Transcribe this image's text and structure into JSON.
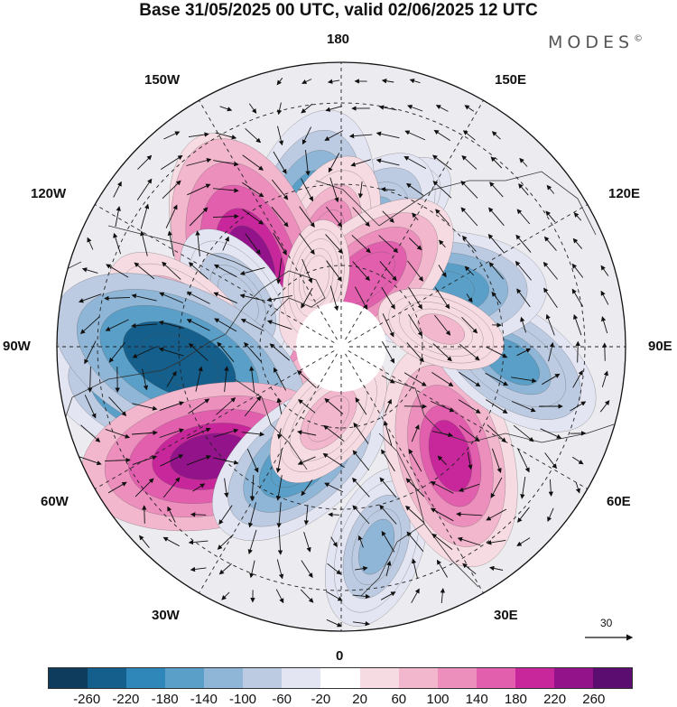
{
  "title": "Base 31/05/2025 00 UTC, valid 02/06/2025 12 UTC",
  "brand": "MODES",
  "brand_mark": "©",
  "longitude_labels": {
    "lon_180": "180",
    "lon_150w": "150W",
    "lon_150e": "150E",
    "lon_120w": "120W",
    "lon_120e": "120E",
    "lon_90w": "90W",
    "lon_90e": "90E",
    "lon_60w": "60W",
    "lon_60e": "60E",
    "lon_30w": "30W",
    "lon_30e": "30E",
    "lon_0": "0"
  },
  "reference_vector": {
    "value": "30"
  },
  "colorbar": {
    "colors": [
      "#0d3c5c",
      "#155f8c",
      "#2f86b8",
      "#5a9fc8",
      "#8fb6d6",
      "#bccbe2",
      "#e4e5f2",
      "#ffffff",
      "#f7dbe2",
      "#f2b7cd",
      "#ec8fbd",
      "#e25fae",
      "#c7279a",
      "#92138a",
      "#5c0e70"
    ],
    "ticks": [
      "-260",
      "-220",
      "-180",
      "-140",
      "-100",
      "-60",
      "-20",
      "20",
      "60",
      "100",
      "140",
      "180",
      "220",
      "260"
    ]
  },
  "anomaly_centers": [
    {
      "lon": 160,
      "lat": 55,
      "value": -80
    },
    {
      "lon": 170,
      "lat": 62,
      "value": -150
    },
    {
      "lon": -165,
      "lat": 58,
      "value": -200
    },
    {
      "lon": -172,
      "lat": 63,
      "value": 120
    },
    {
      "lon": -135,
      "lat": 52,
      "value": 180
    },
    {
      "lon": -132,
      "lat": 60,
      "value": 250
    },
    {
      "lon": -115,
      "lat": 62,
      "value": -100
    },
    {
      "lon": -100,
      "lat": 50,
      "value": 120
    },
    {
      "lon": -75,
      "lat": 45,
      "value": -220
    },
    {
      "lon": -85,
      "lat": 50,
      "value": -260
    },
    {
      "lon": -50,
      "lat": 48,
      "value": 250
    },
    {
      "lon": -20,
      "lat": 60,
      "value": -170
    },
    {
      "lon": -10,
      "lat": 72,
      "value": 90
    },
    {
      "lon": 10,
      "lat": 40,
      "value": -110
    },
    {
      "lon": 45,
      "lat": 52,
      "value": 200
    },
    {
      "lon": 85,
      "lat": 48,
      "value": -150
    },
    {
      "lon": 120,
      "lat": 62,
      "value": -180
    },
    {
      "lon": 160,
      "lat": 72,
      "value": 170
    },
    {
      "lon": 100,
      "lat": 65,
      "value": 60
    },
    {
      "lon": -160,
      "lat": 72,
      "value": 40
    }
  ]
}
